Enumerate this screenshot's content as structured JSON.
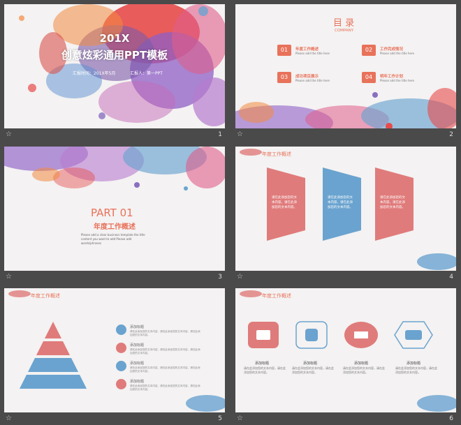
{
  "slides": [
    {
      "number": "1",
      "title_year": "201X",
      "title_main": "创意炫彩通用PPT模板",
      "meta_left": "汇报时间：201X年5月",
      "meta_right": "汇报人：第一PPT"
    },
    {
      "number": "2",
      "title": "目 录",
      "subtitle": "COMPANY",
      "items": [
        {
          "num": "01",
          "title": "年度工作概述",
          "sub": "Please add the title here"
        },
        {
          "num": "02",
          "title": "工作完成情况",
          "sub": "Please add the title here"
        },
        {
          "num": "03",
          "title": "成功项目展示",
          "sub": "Please add the title here"
        },
        {
          "num": "04",
          "title": "明年工作计划",
          "sub": "Please add the title here"
        }
      ]
    },
    {
      "number": "3",
      "part": "PART 01",
      "title": "年度工作概述",
      "desc": [
        "Please add a clear business template the title",
        "content you want to add Please add",
        "words/phrases"
      ]
    },
    {
      "number": "4",
      "header": "年度工作概述",
      "cards": [
        {
          "text": "请在此添加您的文本内容，请在此添加您的文本内容。",
          "color": "#e07b7b"
        },
        {
          "text": "请在此添加您的文本内容，请在此添加您的文本内容。",
          "color": "#6aa3cf"
        },
        {
          "text": "请在此添加您的文本内容，请在此添加您的文本内容。",
          "color": "#e07b7b"
        }
      ]
    },
    {
      "number": "5",
      "header": "年度工作概述",
      "items": [
        {
          "title": "添加标题",
          "line1": "请在此添加您的文本内容，请在此添加您的文本内容，请在此添",
          "line2": "加您的文本内容。"
        },
        {
          "title": "添加标题",
          "line1": "请在此添加您的文本内容，请在此添加您的文本内容，请在此添",
          "line2": "加您的文本内容。"
        },
        {
          "title": "添加标题",
          "line1": "请在此添加您的文本内容，请在此添加您的文本内容，请在此添",
          "line2": "加您的文本内容。"
        },
        {
          "title": "添加标题",
          "line1": "请在此添加您的文本内容，请在此添加您的文本内容，请在此添",
          "line2": "加您的文本内容。"
        }
      ]
    },
    {
      "number": "6",
      "header": "年度工作概述",
      "features": [
        {
          "title": "添加标题",
          "text": "请在此添加您的文本内容，请在此添加您的文本内容。"
        },
        {
          "title": "添加标题",
          "text": "请在此添加您的文本内容，请在此添加您的文本内容。"
        },
        {
          "title": "添加标题",
          "text": "请在此添加您的文本内容，请在此添加您的文本内容。"
        },
        {
          "title": "添加标题",
          "text": "请在此添加您的文本内容，请在此添加您的文本内容。"
        }
      ]
    }
  ],
  "colors": {
    "accent": "#e8725a",
    "pink": "#e07b7b",
    "blue": "#6aa3cf",
    "purple": "#8a6fc0",
    "dark": "#4a4a4a"
  },
  "icons": {
    "thumbnail_marker": "star-icon"
  }
}
